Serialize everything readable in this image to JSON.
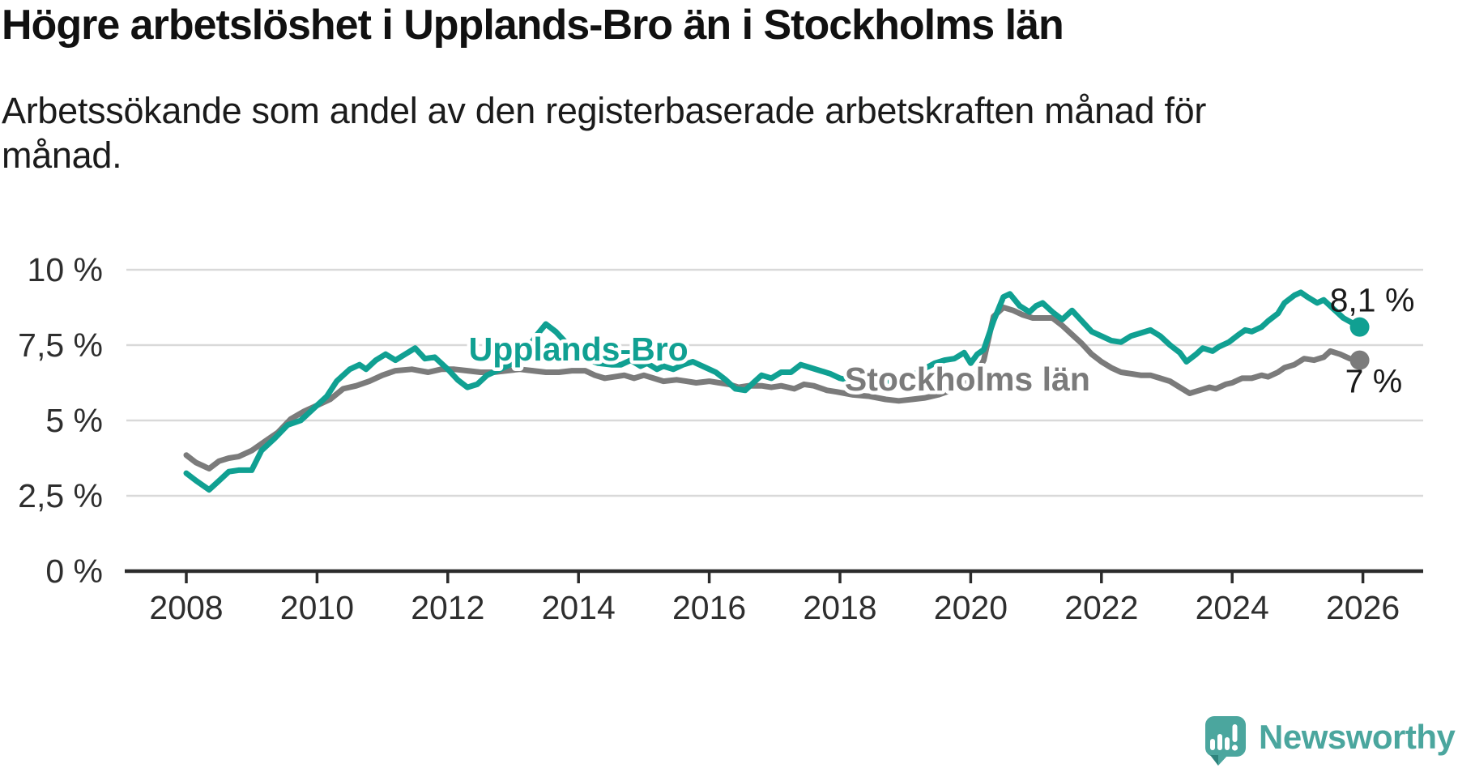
{
  "header": {
    "title": "Högre arbetslöshet i Upplands-Bro än i Stockholms län",
    "subtitle": "Arbetssökande som andel av den registerbaserade arbetskraften månad för månad."
  },
  "chart_data": {
    "type": "line",
    "title": "Högre arbetslöshet i Upplands-Bro än i Stockholms län",
    "xlabel": "",
    "ylabel": "",
    "grid": "horizontal",
    "legend_position": "inline-labels",
    "xlim": [
      2007.1,
      2026.9
    ],
    "ylim": [
      0,
      10
    ],
    "x_ticks": [
      2008,
      2010,
      2012,
      2014,
      2016,
      2018,
      2020,
      2022,
      2024,
      2026
    ],
    "y_ticks": [
      {
        "value": 0,
        "label": "0 %"
      },
      {
        "value": 2.5,
        "label": "2,5 %"
      },
      {
        "value": 5,
        "label": "5 %"
      },
      {
        "value": 7.5,
        "label": "7,5 %"
      },
      {
        "value": 10,
        "label": "10 %"
      }
    ],
    "series": [
      {
        "name": "Upplands-Bro",
        "color": "#10a092",
        "end_label": "8,1 %",
        "end_value": 8.1,
        "label_pos": {
          "year": 2014.0,
          "value": 7.37
        },
        "points": [
          [
            2008.0,
            3.25
          ],
          [
            2008.15,
            3.0
          ],
          [
            2008.35,
            2.7
          ],
          [
            2008.5,
            3.0
          ],
          [
            2008.65,
            3.3
          ],
          [
            2008.8,
            3.35
          ],
          [
            2009.0,
            3.35
          ],
          [
            2009.15,
            4.0
          ],
          [
            2009.35,
            4.4
          ],
          [
            2009.55,
            4.85
          ],
          [
            2009.75,
            5.0
          ],
          [
            2009.95,
            5.4
          ],
          [
            2010.15,
            5.8
          ],
          [
            2010.3,
            6.3
          ],
          [
            2010.5,
            6.7
          ],
          [
            2010.65,
            6.85
          ],
          [
            2010.75,
            6.7
          ],
          [
            2010.9,
            7.0
          ],
          [
            2011.05,
            7.2
          ],
          [
            2011.2,
            7.0
          ],
          [
            2011.35,
            7.2
          ],
          [
            2011.5,
            7.4
          ],
          [
            2011.65,
            7.05
          ],
          [
            2011.8,
            7.1
          ],
          [
            2012.0,
            6.7
          ],
          [
            2012.15,
            6.35
          ],
          [
            2012.3,
            6.1
          ],
          [
            2012.45,
            6.2
          ],
          [
            2012.6,
            6.5
          ],
          [
            2012.8,
            6.7
          ],
          [
            2013.0,
            6.9
          ],
          [
            2013.2,
            7.3
          ],
          [
            2013.35,
            7.8
          ],
          [
            2013.5,
            8.2
          ],
          [
            2013.65,
            7.95
          ],
          [
            2013.8,
            7.6
          ],
          [
            2013.95,
            7.3
          ],
          [
            2014.1,
            7.05
          ],
          [
            2014.3,
            6.9
          ],
          [
            2014.5,
            6.85
          ],
          [
            2014.65,
            6.85
          ],
          [
            2014.8,
            7.0
          ],
          [
            2014.95,
            6.8
          ],
          [
            2015.05,
            6.9
          ],
          [
            2015.2,
            6.7
          ],
          [
            2015.3,
            6.8
          ],
          [
            2015.45,
            6.7
          ],
          [
            2015.6,
            6.85
          ],
          [
            2015.75,
            6.95
          ],
          [
            2015.95,
            6.75
          ],
          [
            2016.1,
            6.6
          ],
          [
            2016.25,
            6.35
          ],
          [
            2016.4,
            6.05
          ],
          [
            2016.55,
            6.0
          ],
          [
            2016.7,
            6.3
          ],
          [
            2016.8,
            6.5
          ],
          [
            2016.95,
            6.4
          ],
          [
            2017.1,
            6.6
          ],
          [
            2017.25,
            6.6
          ],
          [
            2017.4,
            6.85
          ],
          [
            2017.55,
            6.75
          ],
          [
            2017.7,
            6.65
          ],
          [
            2017.85,
            6.55
          ],
          [
            2018.0,
            6.4
          ],
          [
            2018.2,
            6.3
          ],
          [
            2018.4,
            6.25
          ],
          [
            2018.6,
            6.3
          ],
          [
            2018.8,
            6.3
          ],
          [
            2019.0,
            6.4
          ],
          [
            2019.2,
            6.6
          ],
          [
            2019.45,
            6.9
          ],
          [
            2019.6,
            7.0
          ],
          [
            2019.75,
            7.05
          ],
          [
            2019.9,
            7.25
          ],
          [
            2020.0,
            6.9
          ],
          [
            2020.1,
            7.2
          ],
          [
            2020.2,
            7.35
          ],
          [
            2020.35,
            8.3
          ],
          [
            2020.5,
            9.1
          ],
          [
            2020.6,
            9.2
          ],
          [
            2020.75,
            8.8
          ],
          [
            2020.9,
            8.6
          ],
          [
            2021.0,
            8.8
          ],
          [
            2021.1,
            8.9
          ],
          [
            2021.25,
            8.6
          ],
          [
            2021.4,
            8.35
          ],
          [
            2021.55,
            8.65
          ],
          [
            2021.7,
            8.3
          ],
          [
            2021.85,
            7.95
          ],
          [
            2022.0,
            7.8
          ],
          [
            2022.15,
            7.65
          ],
          [
            2022.3,
            7.6
          ],
          [
            2022.45,
            7.8
          ],
          [
            2022.6,
            7.9
          ],
          [
            2022.75,
            8.0
          ],
          [
            2022.9,
            7.8
          ],
          [
            2023.05,
            7.5
          ],
          [
            2023.2,
            7.25
          ],
          [
            2023.3,
            6.95
          ],
          [
            2023.45,
            7.2
          ],
          [
            2023.55,
            7.4
          ],
          [
            2023.7,
            7.3
          ],
          [
            2023.8,
            7.45
          ],
          [
            2023.95,
            7.6
          ],
          [
            2024.1,
            7.85
          ],
          [
            2024.2,
            8.0
          ],
          [
            2024.3,
            7.95
          ],
          [
            2024.45,
            8.1
          ],
          [
            2024.55,
            8.3
          ],
          [
            2024.7,
            8.55
          ],
          [
            2024.8,
            8.9
          ],
          [
            2024.95,
            9.15
          ],
          [
            2025.05,
            9.25
          ],
          [
            2025.15,
            9.1
          ],
          [
            2025.3,
            8.9
          ],
          [
            2025.4,
            9.0
          ],
          [
            2025.55,
            8.7
          ],
          [
            2025.7,
            8.4
          ],
          [
            2025.95,
            8.1
          ]
        ]
      },
      {
        "name": "Stockholms län",
        "color": "#7b7b7b",
        "end_label": "7 %",
        "end_value": 7.0,
        "label_pos": {
          "year": 2019.95,
          "value": 6.37
        },
        "points": [
          [
            2008.0,
            3.85
          ],
          [
            2008.15,
            3.6
          ],
          [
            2008.35,
            3.4
          ],
          [
            2008.5,
            3.65
          ],
          [
            2008.65,
            3.75
          ],
          [
            2008.8,
            3.8
          ],
          [
            2009.0,
            4.0
          ],
          [
            2009.2,
            4.3
          ],
          [
            2009.4,
            4.6
          ],
          [
            2009.6,
            5.05
          ],
          [
            2009.8,
            5.3
          ],
          [
            2010.0,
            5.5
          ],
          [
            2010.2,
            5.7
          ],
          [
            2010.4,
            6.05
          ],
          [
            2010.6,
            6.15
          ],
          [
            2010.8,
            6.3
          ],
          [
            2011.0,
            6.5
          ],
          [
            2011.2,
            6.65
          ],
          [
            2011.45,
            6.7
          ],
          [
            2011.7,
            6.6
          ],
          [
            2011.9,
            6.7
          ],
          [
            2012.1,
            6.7
          ],
          [
            2012.3,
            6.65
          ],
          [
            2012.5,
            6.6
          ],
          [
            2012.7,
            6.6
          ],
          [
            2012.9,
            6.65
          ],
          [
            2013.1,
            6.7
          ],
          [
            2013.3,
            6.65
          ],
          [
            2013.5,
            6.6
          ],
          [
            2013.7,
            6.6
          ],
          [
            2013.9,
            6.65
          ],
          [
            2014.1,
            6.65
          ],
          [
            2014.25,
            6.5
          ],
          [
            2014.4,
            6.4
          ],
          [
            2014.55,
            6.45
          ],
          [
            2014.7,
            6.5
          ],
          [
            2014.85,
            6.4
          ],
          [
            2015.0,
            6.5
          ],
          [
            2015.15,
            6.4
          ],
          [
            2015.3,
            6.3
          ],
          [
            2015.5,
            6.35
          ],
          [
            2015.65,
            6.3
          ],
          [
            2015.8,
            6.25
          ],
          [
            2016.0,
            6.3
          ],
          [
            2016.15,
            6.25
          ],
          [
            2016.3,
            6.2
          ],
          [
            2016.45,
            6.1
          ],
          [
            2016.6,
            6.15
          ],
          [
            2016.8,
            6.15
          ],
          [
            2016.95,
            6.1
          ],
          [
            2017.1,
            6.15
          ],
          [
            2017.3,
            6.05
          ],
          [
            2017.45,
            6.2
          ],
          [
            2017.6,
            6.15
          ],
          [
            2017.8,
            6.0
          ],
          [
            2017.95,
            5.95
          ],
          [
            2018.2,
            5.85
          ],
          [
            2018.45,
            5.8
          ],
          [
            2018.7,
            5.7
          ],
          [
            2018.9,
            5.65
          ],
          [
            2019.1,
            5.7
          ],
          [
            2019.3,
            5.75
          ],
          [
            2019.5,
            5.85
          ],
          [
            2019.7,
            6.0
          ],
          [
            2019.9,
            6.2
          ],
          [
            2020.05,
            6.4
          ],
          [
            2020.2,
            7.0
          ],
          [
            2020.35,
            8.45
          ],
          [
            2020.5,
            8.75
          ],
          [
            2020.65,
            8.65
          ],
          [
            2020.8,
            8.5
          ],
          [
            2020.95,
            8.4
          ],
          [
            2021.1,
            8.4
          ],
          [
            2021.25,
            8.4
          ],
          [
            2021.4,
            8.15
          ],
          [
            2021.55,
            7.85
          ],
          [
            2021.7,
            7.55
          ],
          [
            2021.85,
            7.2
          ],
          [
            2022.0,
            6.95
          ],
          [
            2022.15,
            6.75
          ],
          [
            2022.3,
            6.6
          ],
          [
            2022.45,
            6.55
          ],
          [
            2022.6,
            6.5
          ],
          [
            2022.75,
            6.5
          ],
          [
            2022.9,
            6.4
          ],
          [
            2023.05,
            6.3
          ],
          [
            2023.2,
            6.1
          ],
          [
            2023.35,
            5.9
          ],
          [
            2023.5,
            6.0
          ],
          [
            2023.65,
            6.1
          ],
          [
            2023.75,
            6.05
          ],
          [
            2023.9,
            6.2
          ],
          [
            2024.0,
            6.25
          ],
          [
            2024.15,
            6.4
          ],
          [
            2024.3,
            6.4
          ],
          [
            2024.45,
            6.5
          ],
          [
            2024.55,
            6.45
          ],
          [
            2024.7,
            6.6
          ],
          [
            2024.8,
            6.75
          ],
          [
            2024.95,
            6.85
          ],
          [
            2025.1,
            7.05
          ],
          [
            2025.25,
            7.0
          ],
          [
            2025.4,
            7.1
          ],
          [
            2025.5,
            7.3
          ],
          [
            2025.65,
            7.2
          ],
          [
            2025.8,
            7.05
          ],
          [
            2025.95,
            7.0
          ]
        ]
      }
    ],
    "style": {
      "grid_color": "#d9d9d9",
      "axis_color": "#2b2b2b",
      "tick_label_color": "#2e2e2e"
    }
  },
  "logo": {
    "text": "Newsworthy",
    "icon": "newsworthy-speech-bubble-chart-icon",
    "color": "#4ba69e"
  }
}
